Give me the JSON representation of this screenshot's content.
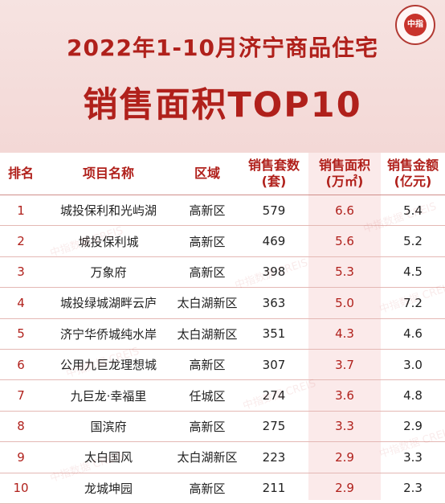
{
  "header": {
    "logo_text": "中指",
    "title_line1": "2022年1-10月济宁商品住宅",
    "title_line2": "销售面积TOP10"
  },
  "table": {
    "columns": [
      "排名",
      "项目名称",
      "区域",
      "销售套数\n(套)",
      "销售面积\n(万㎡)",
      "销售金额\n(亿元)"
    ],
    "rows": [
      [
        "1",
        "城投保利和光屿湖",
        "高新区",
        "579",
        "6.6",
        "5.4"
      ],
      [
        "2",
        "城投保利城",
        "高新区",
        "469",
        "5.6",
        "5.2"
      ],
      [
        "3",
        "万象府",
        "高新区",
        "398",
        "5.3",
        "4.5"
      ],
      [
        "4",
        "城投绿城湖畔云庐",
        "太白湖新区",
        "363",
        "5.0",
        "7.2"
      ],
      [
        "5",
        "济宁华侨城纯水岸",
        "太白湖新区",
        "351",
        "4.3",
        "4.6"
      ],
      [
        "6",
        "公用九巨龙理想城",
        "高新区",
        "307",
        "3.7",
        "3.0"
      ],
      [
        "7",
        "九巨龙·幸福里",
        "任城区",
        "274",
        "3.6",
        "4.8"
      ],
      [
        "8",
        "国滨府",
        "高新区",
        "275",
        "3.3",
        "2.9"
      ],
      [
        "9",
        "太白国风",
        "太白湖新区",
        "223",
        "2.9",
        "3.3"
      ],
      [
        "10",
        "龙城坤园",
        "高新区",
        "211",
        "2.9",
        "2.3"
      ]
    ]
  },
  "watermark": "中指数据 CREIS",
  "colors": {
    "accent": "#b0201b",
    "header_bg": "#f3d8d6",
    "col_shade": "#fbeaea"
  }
}
